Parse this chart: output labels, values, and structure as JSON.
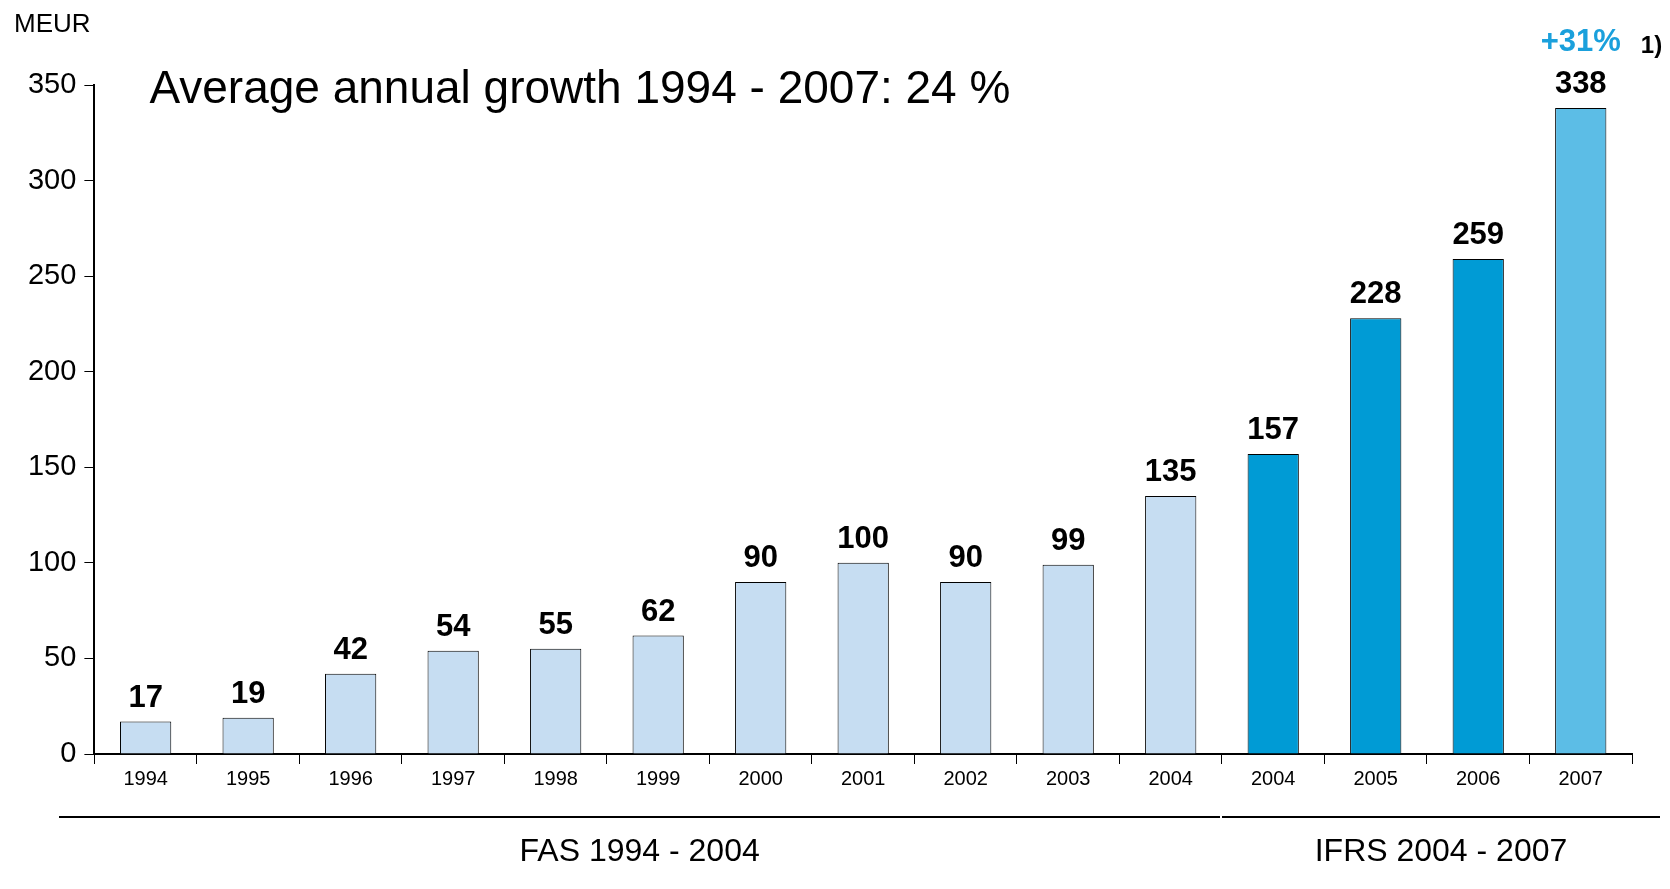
{
  "chart_data": {
    "type": "bar",
    "title": "Average annual growth 1994 - 2007: 24 %",
    "ylabel": "MEUR",
    "categories": [
      "1994",
      "1995",
      "1996",
      "1997",
      "1998",
      "1999",
      "2000",
      "2001",
      "2002",
      "2003",
      "2004",
      "2004",
      "2005",
      "2006",
      "2007"
    ],
    "values": [
      17,
      19,
      42,
      54,
      55,
      62,
      90,
      100,
      90,
      99,
      135,
      157,
      228,
      259,
      338
    ],
    "colors": [
      "#c6ddf2",
      "#c6ddf2",
      "#c6ddf2",
      "#c6ddf2",
      "#c6ddf2",
      "#c6ddf2",
      "#c6ddf2",
      "#c6ddf2",
      "#c6ddf2",
      "#c6ddf2",
      "#c6ddf2",
      "#009bd5",
      "#009bd5",
      "#009bd5",
      "#5cbde6"
    ],
    "ylim": [
      0,
      350
    ],
    "yticks": [
      0,
      50,
      100,
      150,
      200,
      250,
      300,
      350
    ],
    "grid": false,
    "legend": false,
    "data_labels": true,
    "annotations": [
      {
        "text": "+31%",
        "x": "2007",
        "y": 338
      },
      "1)",
      "FAS 1994 - 2004",
      "IFRS 2004 - 2007"
    ]
  }
}
